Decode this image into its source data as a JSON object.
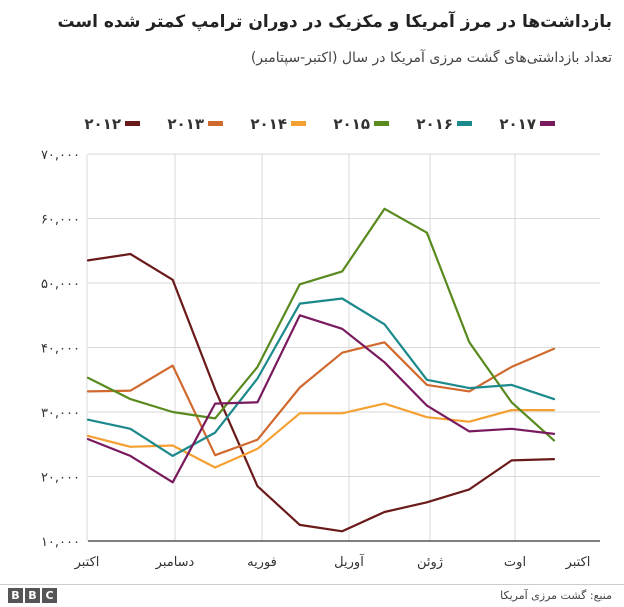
{
  "chart_data": {
    "type": "line",
    "title": "بازداشت‌ها در مرز آمریکا و مکزیک در دوران ترامپ کمتر شده است",
    "subtitle": "تعداد بازداشتی‌های گشت مرزی آمریکا در سال (اکتبر-سپتامبر)",
    "x_labels": [
      "اکتبر",
      "دسامبر",
      "فوریه",
      "آوریل",
      "ژوئن",
      "اوت",
      "اکتبر"
    ],
    "y_ticks": [
      10000,
      20000,
      30000,
      40000,
      50000,
      60000,
      70000
    ],
    "y_tick_labels": [
      "۱۰,۰۰۰",
      "۲۰,۰۰۰",
      "۳۰,۰۰۰",
      "۴۰,۰۰۰",
      "۵۰,۰۰۰",
      "۶۰,۰۰۰",
      "۷۰,۰۰۰"
    ],
    "ylim": [
      10000,
      70000
    ],
    "grid": true,
    "legend_position": "top",
    "series": [
      {
        "name": "۲۰۱۲",
        "color": "#6b1a1a",
        "values": [
          53500,
          54500,
          50500,
          33500,
          18500,
          12500,
          11500,
          14500,
          16000,
          18000,
          22500,
          22700
        ]
      },
      {
        "name": "۲۰۱۳",
        "color": "#d0692e",
        "values": [
          33200,
          33300,
          37200,
          23300,
          25700,
          33800,
          39200,
          40800,
          34200,
          33200,
          37000,
          39800
        ]
      },
      {
        "name": "۲۰۱۴",
        "color": "#f5a033",
        "values": [
          26300,
          24600,
          24800,
          21400,
          24300,
          29800,
          29800,
          31300,
          29200,
          28500,
          30300,
          30300
        ]
      },
      {
        "name": "۲۰۱۵",
        "color": "#588a1e",
        "values": [
          35300,
          32000,
          30000,
          29000,
          37000,
          49800,
          51800,
          61500,
          57800,
          40800,
          31500,
          25600
        ]
      },
      {
        "name": "۲۰۱۶",
        "color": "#1c8a8c",
        "values": [
          28800,
          27400,
          23200,
          26800,
          35200,
          46800,
          47600,
          43600,
          35000,
          33700,
          34200,
          32000
        ]
      },
      {
        "name": "۲۰۱۷",
        "color": "#7a1a5e",
        "values": [
          25800,
          23200,
          19100,
          31300,
          31500,
          45000,
          42900,
          37700,
          31000,
          27000,
          27400,
          26600
        ]
      }
    ]
  },
  "footer": {
    "source": "منبع: گشت مرزی آمریکا",
    "logo_letters": [
      "B",
      "B",
      "C"
    ]
  }
}
